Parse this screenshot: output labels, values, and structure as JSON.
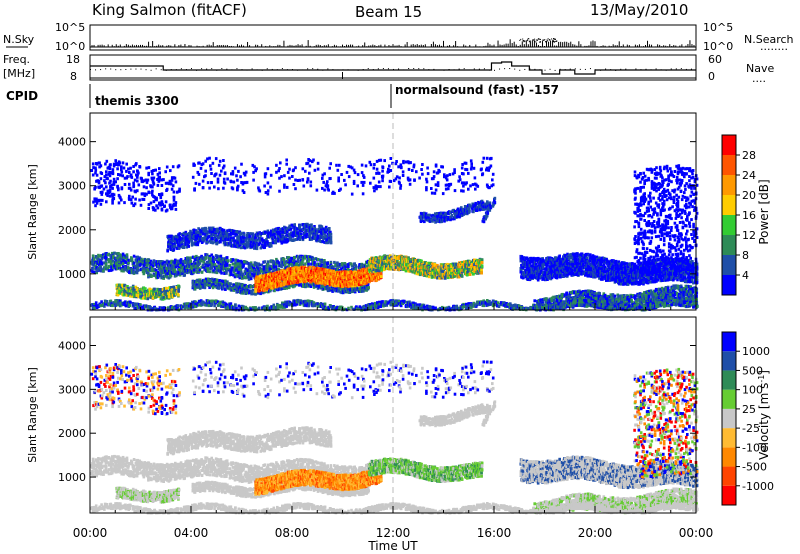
{
  "header": {
    "station": "King Salmon (fitACF)",
    "beam": "Beam 15",
    "date": "13/May/2010"
  },
  "nsky_panel": {
    "left_label": "N.Sky",
    "right_label": "N.Search",
    "right_dots": "........",
    "ticks_left": [
      "10^5",
      "10^0"
    ],
    "ticks_right": [
      "10^5",
      "10^0"
    ]
  },
  "freq_panel": {
    "left_label_1": "Freq.",
    "left_label_2": "[MHz]",
    "right_label": "Nave",
    "right_dots": "....",
    "ticks_left": [
      "18",
      "8"
    ],
    "ticks_right": [
      "60",
      "0"
    ]
  },
  "cpid": {
    "label": "CPID",
    "modes": [
      {
        "name": "themis 3300"
      },
      {
        "name": "normalsound (fast) -157"
      }
    ]
  },
  "colors": {
    "power": [
      "#0000ff",
      "#1f4fa8",
      "#2e8b57",
      "#33cc33",
      "#ffcc00",
      "#ff9900",
      "#ff5500",
      "#ff0000"
    ],
    "velocity": [
      "#ff0000",
      "#ff4400",
      "#ff8800",
      "#ffbb33",
      "#c8c8c8",
      "#66cc33",
      "#2e8b57",
      "#1f4fa8",
      "#0000ff"
    ]
  },
  "chart_data": [
    {
      "type": "heatmap",
      "name": "power",
      "ylabel": "Slant Range [km]",
      "ylim": [
        180,
        4650
      ],
      "yticks": [
        "1000",
        "2000",
        "3000",
        "4000"
      ],
      "colorbar_label": "Power [dB]",
      "colorbar_ticks": [
        "4",
        "8",
        "12",
        "16",
        "20",
        "24",
        "28"
      ]
    },
    {
      "type": "heatmap",
      "name": "velocity",
      "ylabel": "Slant Range [km]",
      "ylim": [
        180,
        4650
      ],
      "yticks": [
        "1000",
        "2000",
        "3000",
        "4000"
      ],
      "colorbar_label": "Velocity [m s",
      "colorbar_label_sup": "-1",
      "colorbar_label_end": "]",
      "colorbar_ticks": [
        "1000",
        "500",
        "100",
        "25",
        "-25",
        "-100",
        "-500",
        "-1000"
      ],
      "xlabel": "Time UT",
      "xticks": [
        "00:00",
        "04:00",
        "08:00",
        "12:00",
        "16:00",
        "20:00",
        "00:00"
      ],
      "xlim": [
        0,
        24
      ]
    }
  ]
}
